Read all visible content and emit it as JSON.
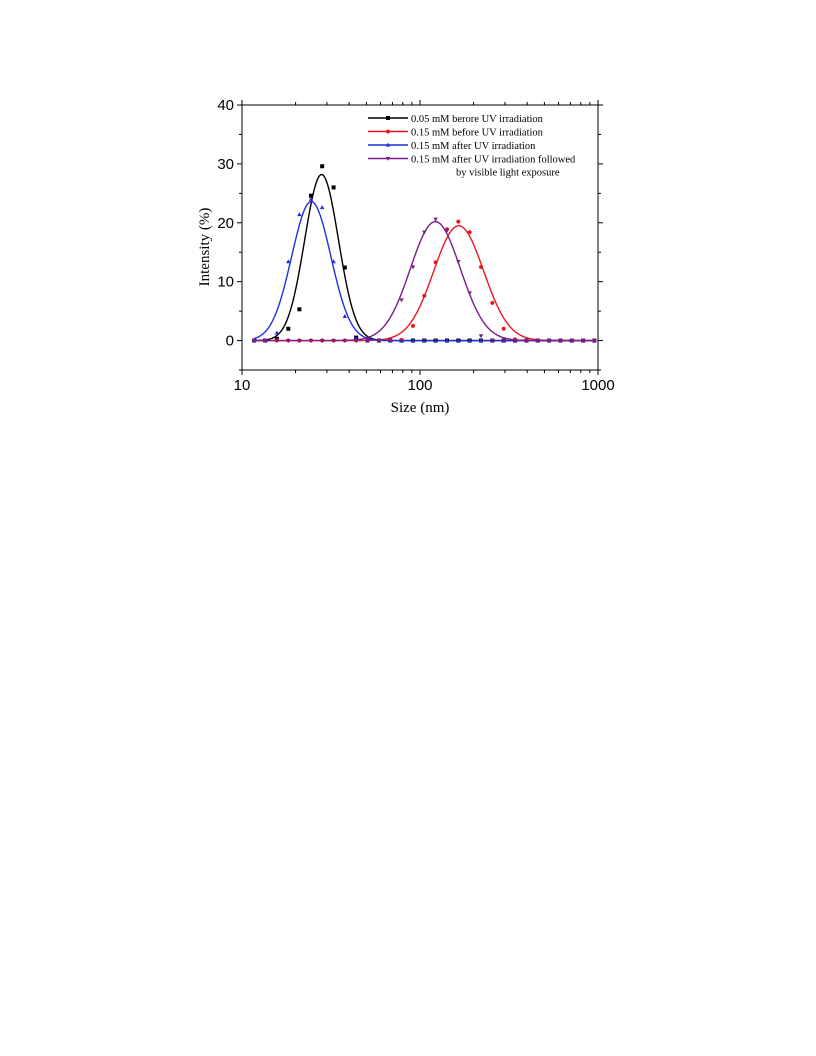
{
  "chart_data": {
    "type": "scatter",
    "title": "",
    "xlabel": "Size (nm)",
    "ylabel": "Intensity (%)",
    "xscale": "log",
    "xlim": [
      10,
      1000
    ],
    "ylim": [
      -5,
      40
    ],
    "xticks": [
      10,
      100,
      1000
    ],
    "xtick_labels": [
      "10",
      "100",
      "1000"
    ],
    "yticks": [
      0,
      10,
      20,
      30,
      40
    ],
    "ytick_labels": [
      "0",
      "10",
      "20",
      "30",
      "40"
    ],
    "grid": false,
    "legend_position": "top-right",
    "x": [
      11.7,
      13.5,
      15.7,
      18.2,
      21.0,
      24.4,
      28.2,
      32.7,
      37.8,
      43.8,
      50.7,
      58.8,
      68.1,
      78.8,
      91.3,
      105.7,
      122.4,
      141.8,
      164.2,
      190.1,
      220.2,
      255.0,
      295.3,
      342.0,
      396.1,
      458.7,
      531.2,
      615.1,
      712.4,
      825.0,
      955.4
    ],
    "series": [
      {
        "name": "0.05 mM berore UV irradiation",
        "color": "#000000",
        "marker": "square",
        "values": [
          0,
          0,
          0.3,
          2.0,
          5.3,
          24.6,
          29.6,
          26.0,
          12.4,
          0.5,
          0,
          0,
          0,
          0,
          0,
          0,
          0,
          0,
          0,
          0,
          0,
          0,
          0,
          0,
          0,
          0,
          0,
          0,
          0,
          0,
          0
        ],
        "fit": {
          "peak_x": 28.0,
          "amplitude": 28.2,
          "width_log10": 0.095
        }
      },
      {
        "name": "0.15 mM before UV irradiation",
        "color": "#e8191e",
        "marker": "circle",
        "values": [
          0,
          0,
          0,
          0,
          0,
          0,
          0,
          0,
          0,
          0,
          0,
          0,
          0,
          0.1,
          2.5,
          7.6,
          13.3,
          18.9,
          20.2,
          18.4,
          12.5,
          6.4,
          2.0,
          0.2,
          0,
          0,
          0,
          0,
          0,
          0,
          0
        ],
        "fit": {
          "peak_x": 165.0,
          "amplitude": 19.5,
          "width_log10": 0.14
        }
      },
      {
        "name": "0.15 mM after UV irradiation",
        "color": "#1f2ee0",
        "marker": "triangle-up",
        "values": [
          0,
          0,
          1.3,
          13.4,
          21.4,
          24.0,
          22.6,
          13.4,
          4.1,
          0.3,
          0,
          0,
          0,
          0,
          0,
          0,
          0,
          0,
          0,
          0,
          0,
          0,
          0,
          0,
          0,
          0,
          0,
          0,
          0,
          0,
          0
        ],
        "fit": {
          "peak_x": 24.5,
          "amplitude": 23.6,
          "width_log10": 0.11
        }
      },
      {
        "name": "0.15 mM after UV irradiation followed by visible light exposure",
        "legend_lines": [
          "0.15 mM after UV irradiation followed",
          "by visible light exposure"
        ],
        "color": "#7b1c8c",
        "marker": "triangle-down",
        "values": [
          0,
          0,
          0,
          0,
          0,
          0,
          0,
          0,
          0,
          0,
          0,
          0,
          0.1,
          6.9,
          12.5,
          18.4,
          20.6,
          18.7,
          13.4,
          8.1,
          0.8,
          0,
          0,
          0,
          0,
          0,
          0,
          0,
          0,
          0,
          0
        ],
        "fit": {
          "peak_x": 122.0,
          "amplitude": 20.2,
          "width_log10": 0.14
        }
      }
    ]
  }
}
